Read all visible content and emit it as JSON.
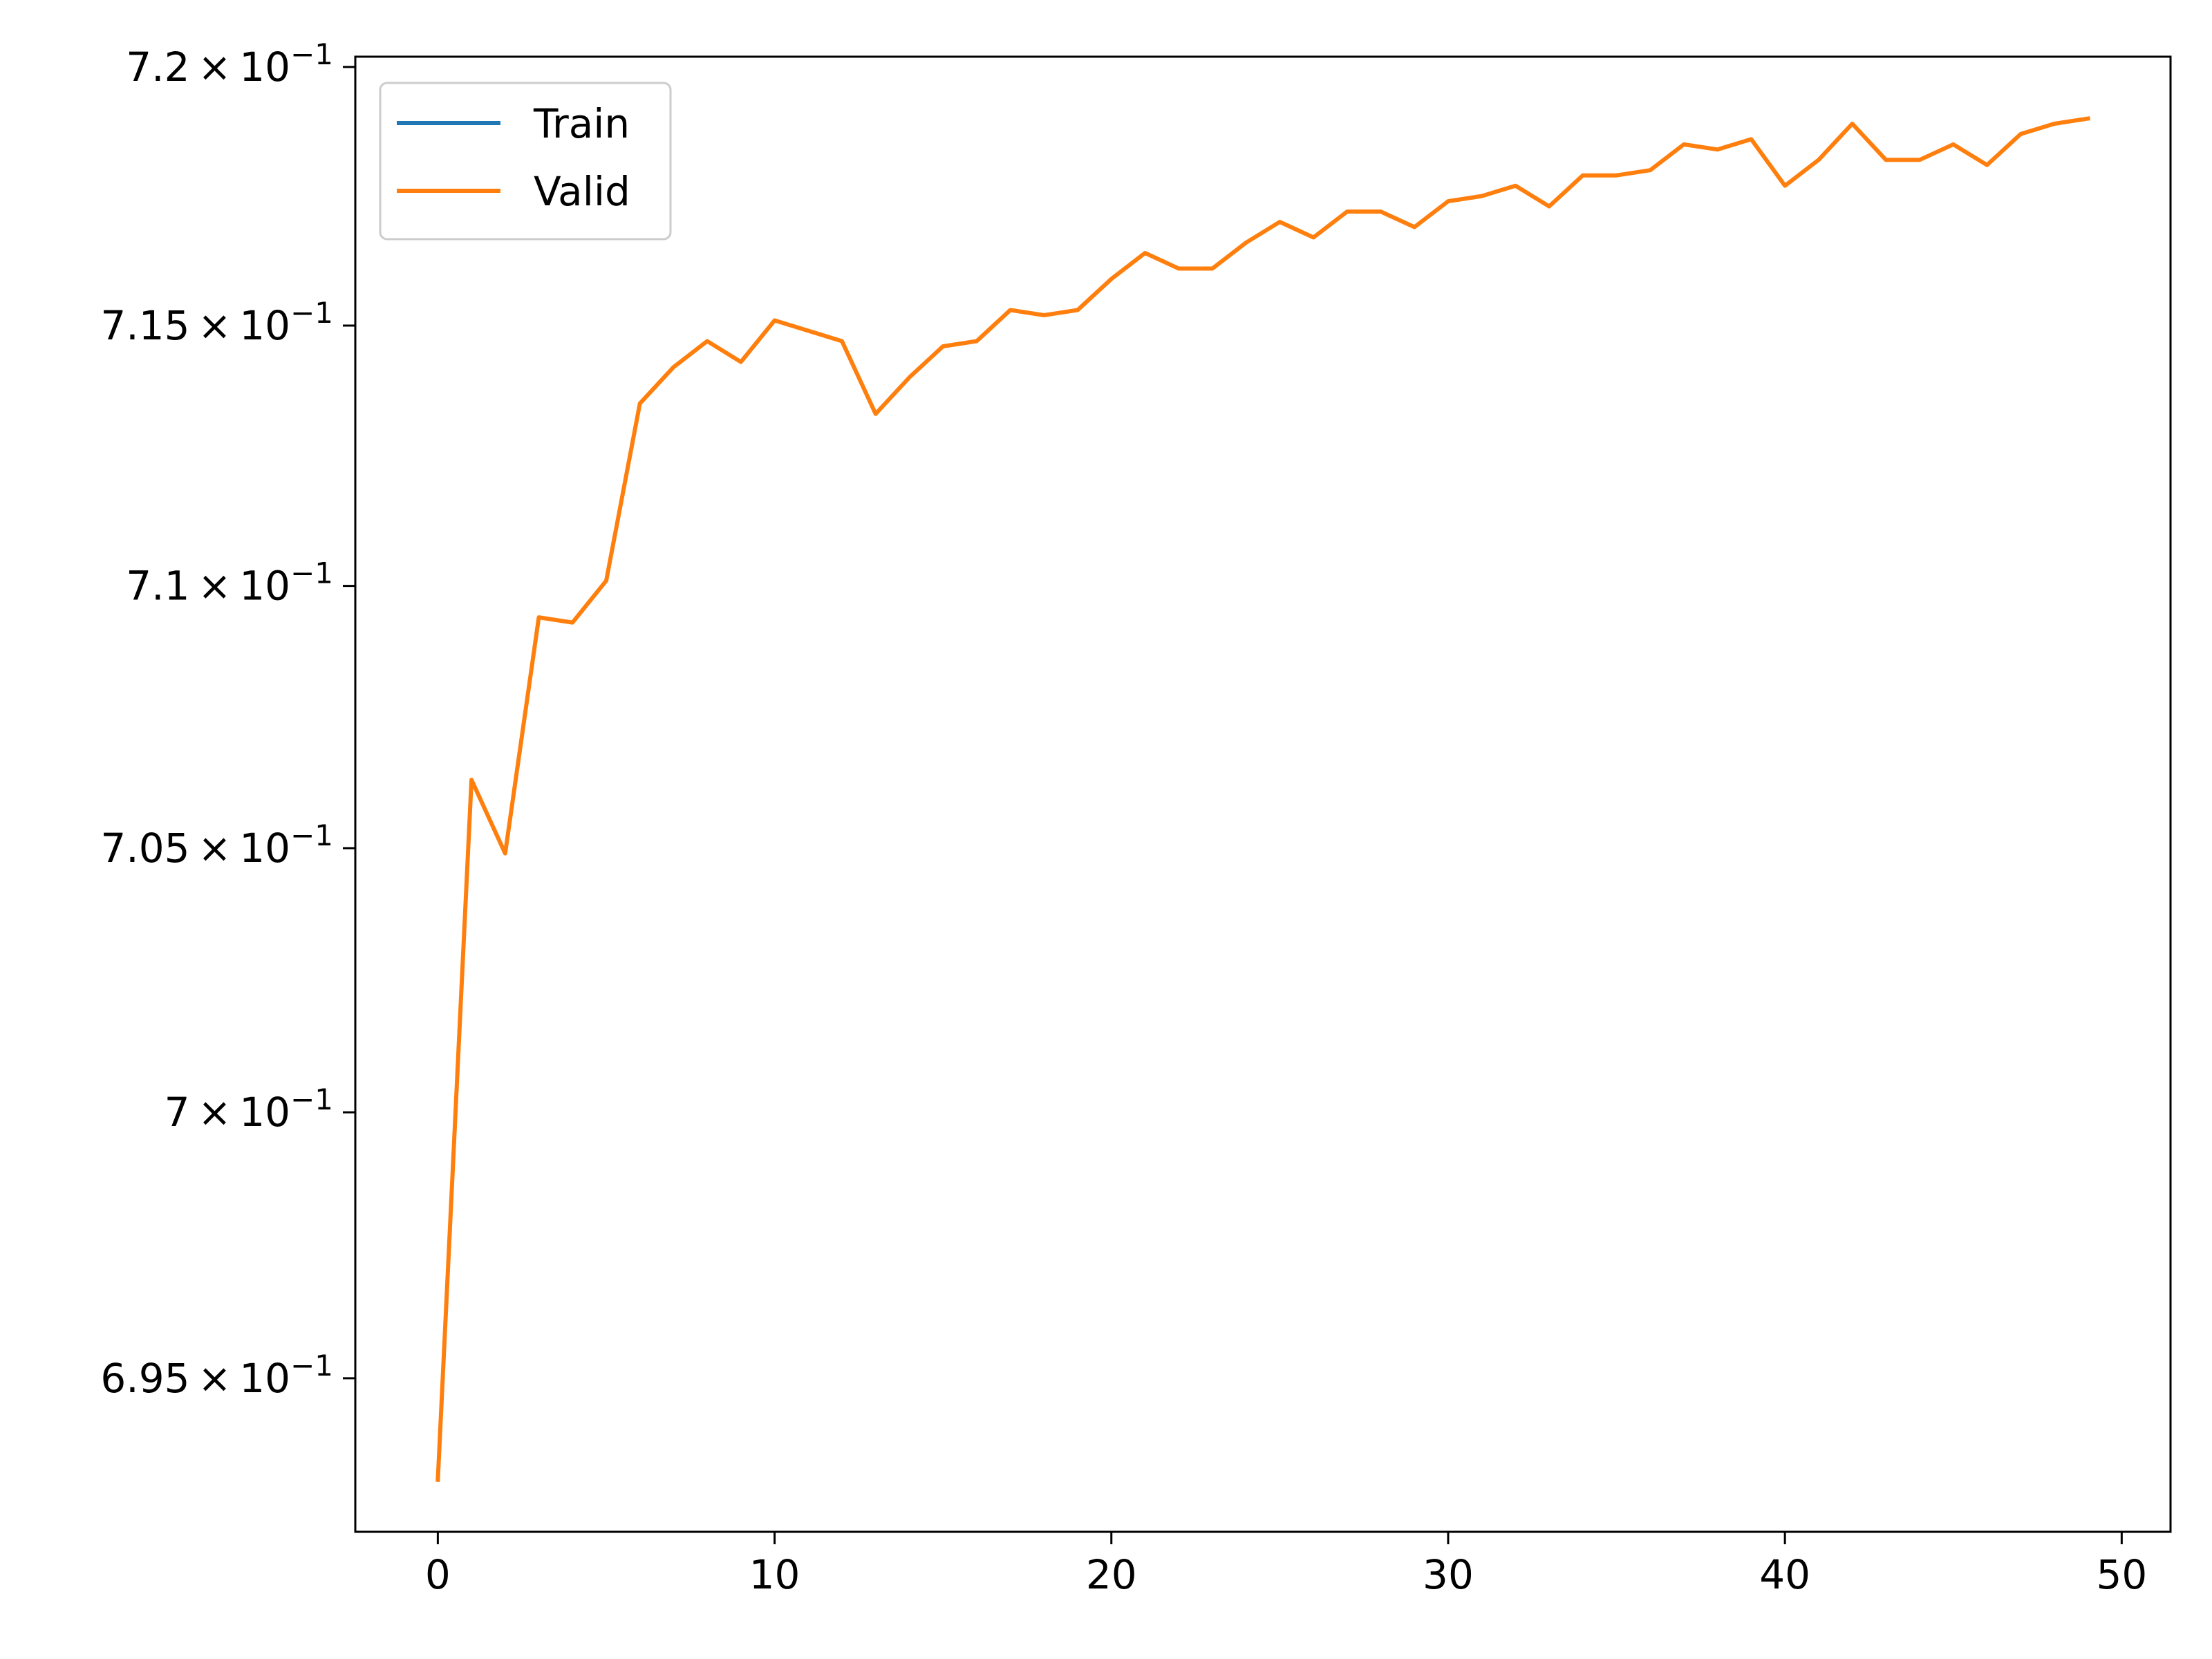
{
  "chart_data": {
    "type": "line",
    "title": "",
    "xlabel": "",
    "ylabel": "",
    "y_scale": "log",
    "xlim": [
      -2.45,
      51.45
    ],
    "ylim": [
      0.69213,
      0.7202
    ],
    "x_ticks": [
      0,
      10,
      20,
      30,
      40,
      50
    ],
    "x_tick_labels": [
      "0",
      "10",
      "20",
      "30",
      "40",
      "50"
    ],
    "y_ticks": [
      {
        "value": 0.695,
        "mantissa": "6.95"
      },
      {
        "value": 0.7,
        "mantissa": "7"
      },
      {
        "value": 0.705,
        "mantissa": "7.05"
      },
      {
        "value": 0.71,
        "mantissa": "7.1"
      },
      {
        "value": 0.715,
        "mantissa": "7.15"
      },
      {
        "value": 0.72,
        "mantissa": "7.2"
      }
    ],
    "y_tick_suffix": "10",
    "y_tick_exponent": "−1",
    "grid": false,
    "legend_position": "top-left",
    "series": [
      {
        "name": "Train",
        "color": "#1f77b4",
        "x": [],
        "values": []
      },
      {
        "name": "Valid",
        "color": "#ff7f0e",
        "x": [
          0,
          1,
          2,
          3,
          4,
          5,
          6,
          7,
          8,
          9,
          10,
          11,
          12,
          13,
          14,
          15,
          16,
          17,
          18,
          19,
          20,
          21,
          22,
          23,
          24,
          25,
          26,
          27,
          28,
          29,
          30,
          31,
          32,
          33,
          34,
          35,
          36,
          37,
          38,
          39,
          40,
          41,
          42,
          43,
          44,
          45,
          46,
          47,
          48,
          49
        ],
        "values": [
          0.6931,
          0.7063,
          0.7049,
          0.7094,
          0.7093,
          0.7101,
          0.7135,
          0.7142,
          0.7147,
          0.7143,
          0.7151,
          0.7149,
          0.7147,
          0.7133,
          0.714,
          0.7146,
          0.7147,
          0.7153,
          0.7152,
          0.7153,
          0.7159,
          0.7164,
          0.7161,
          0.7161,
          0.7166,
          0.717,
          0.7167,
          0.7172,
          0.7172,
          0.7169,
          0.7174,
          0.7175,
          0.7177,
          0.7173,
          0.7179,
          0.7179,
          0.718,
          0.7185,
          0.7184,
          0.7186,
          0.7177,
          0.7182,
          0.7189,
          0.7182,
          0.7182,
          0.7185,
          0.7181,
          0.7187,
          0.7189,
          0.719
        ]
      }
    ]
  }
}
